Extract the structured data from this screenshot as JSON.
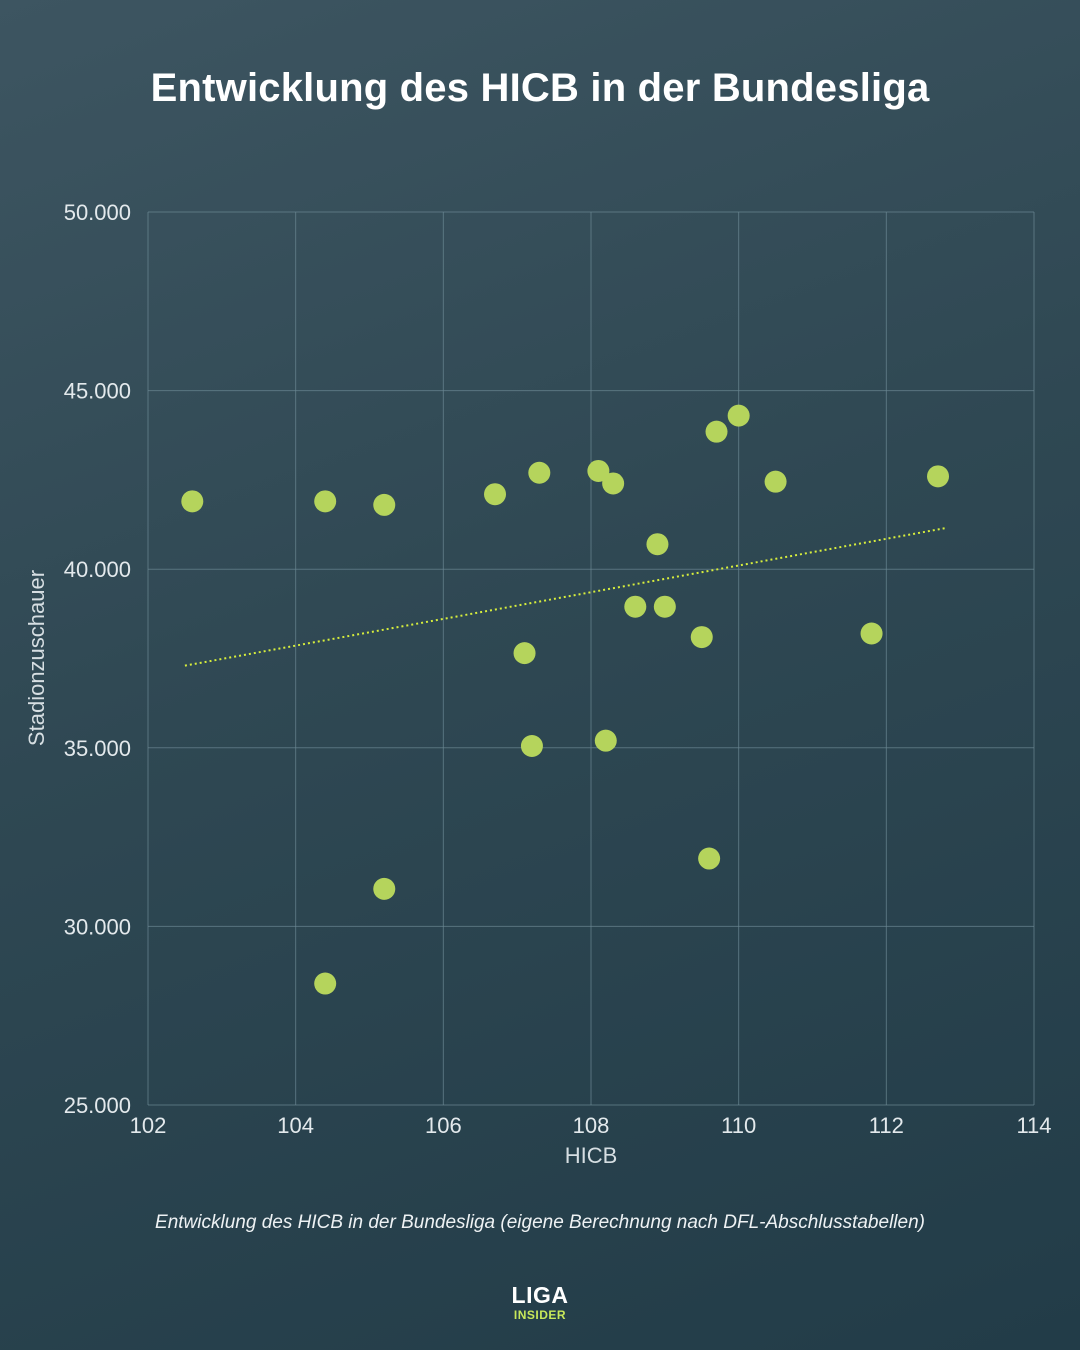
{
  "title": "Entwicklung des HICB in der Bundesliga",
  "caption": "Entwicklung des HICB in der Bundesliga (eigene Berechnung nach DFL-Abschlusstabellen)",
  "logo": {
    "top": "LIGA",
    "bottom": "INSIDER"
  },
  "colors": {
    "point": "#b5d45c",
    "trendline": "#d7ee3c",
    "grid": "#6b8793",
    "logo_accent": "#c8e85a"
  },
  "chart_data": {
    "type": "scatter",
    "title": "Entwicklung des HICB in der Bundesliga",
    "xlabel": "HICB",
    "ylabel": "Stadionzuschauer",
    "xlim": [
      102,
      114
    ],
    "ylim": [
      25000,
      50000
    ],
    "x_ticks": [
      {
        "value": 102,
        "label": "102"
      },
      {
        "value": 104,
        "label": "104"
      },
      {
        "value": 106,
        "label": "106"
      },
      {
        "value": 108,
        "label": "108"
      },
      {
        "value": 110,
        "label": "110"
      },
      {
        "value": 112,
        "label": "112"
      },
      {
        "value": 114,
        "label": "114"
      }
    ],
    "y_ticks": [
      {
        "value": 25000,
        "label": "25.000"
      },
      {
        "value": 30000,
        "label": "30.000"
      },
      {
        "value": 35000,
        "label": "35.000"
      },
      {
        "value": 40000,
        "label": "40.000"
      },
      {
        "value": 45000,
        "label": "45.000"
      },
      {
        "value": 50000,
        "label": "50.000"
      }
    ],
    "grid": true,
    "points": [
      {
        "x": 102.6,
        "y": 41900
      },
      {
        "x": 104.4,
        "y": 41900
      },
      {
        "x": 105.2,
        "y": 41800
      },
      {
        "x": 106.7,
        "y": 42100
      },
      {
        "x": 107.3,
        "y": 42700
      },
      {
        "x": 108.1,
        "y": 42750
      },
      {
        "x": 108.3,
        "y": 42400
      },
      {
        "x": 109.7,
        "y": 43850
      },
      {
        "x": 110.0,
        "y": 44300
      },
      {
        "x": 110.5,
        "y": 42450
      },
      {
        "x": 112.7,
        "y": 42600
      },
      {
        "x": 108.9,
        "y": 40700
      },
      {
        "x": 108.6,
        "y": 38950
      },
      {
        "x": 109.0,
        "y": 38950
      },
      {
        "x": 109.5,
        "y": 38100
      },
      {
        "x": 111.8,
        "y": 38200
      },
      {
        "x": 107.1,
        "y": 37650
      },
      {
        "x": 107.2,
        "y": 35050
      },
      {
        "x": 108.2,
        "y": 35200
      },
      {
        "x": 109.6,
        "y": 31900
      },
      {
        "x": 105.2,
        "y": 31050
      },
      {
        "x": 104.4,
        "y": 28400
      }
    ],
    "trendline": {
      "x": [
        102.5,
        112.8
      ],
      "y": [
        37300,
        41150
      ],
      "style": "dotted"
    }
  }
}
